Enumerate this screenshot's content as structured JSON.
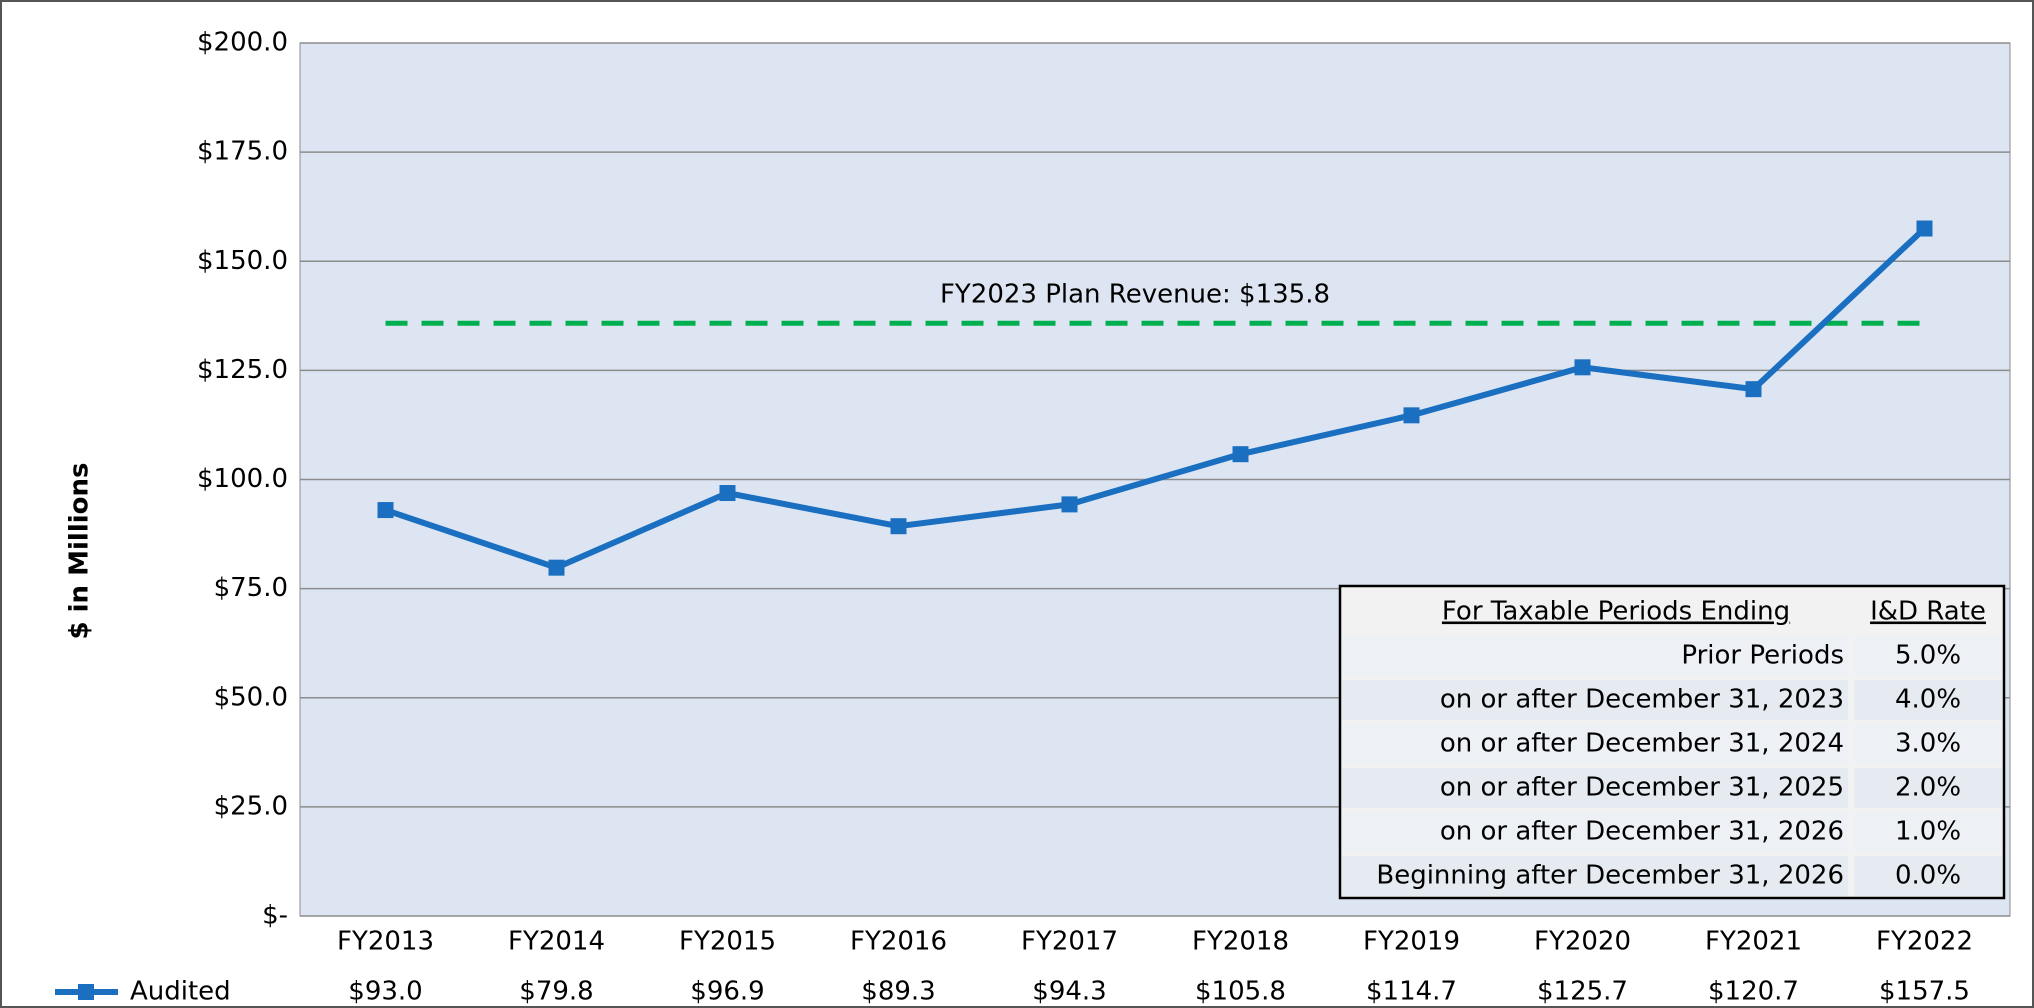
{
  "chart_data": {
    "type": "line",
    "y_axis_label": "$ in Millions",
    "categories": [
      "FY2013",
      "FY2014",
      "FY2015",
      "FY2016",
      "FY2017",
      "FY2018",
      "FY2019",
      "FY2020",
      "FY2021",
      "FY2022"
    ],
    "series": [
      {
        "name": "Audited",
        "color": "#1a6fc0",
        "values": [
          93.0,
          79.8,
          96.9,
          89.3,
          94.3,
          105.8,
          114.7,
          125.7,
          120.7,
          157.5
        ],
        "value_labels": [
          "$93.0",
          "$79.8",
          "$96.9",
          "$89.3",
          "$94.3",
          "$105.8",
          "$114.7",
          "$125.7",
          "$120.7",
          "$157.5"
        ]
      }
    ],
    "plan": {
      "value": 135.8,
      "label": "FY2023 Plan Revenue: $135.8",
      "color": "#00b050"
    },
    "ylim": [
      0,
      200
    ],
    "yticks": [
      {
        "value": 0,
        "label": "$-"
      },
      {
        "value": 25,
        "label": "$25.0"
      },
      {
        "value": 50,
        "label": "$50.0"
      },
      {
        "value": 75,
        "label": "$75.0"
      },
      {
        "value": 100,
        "label": "$100.0"
      },
      {
        "value": 125,
        "label": "$125.0"
      },
      {
        "value": 150,
        "label": "$150.0"
      },
      {
        "value": 175,
        "label": "$175.0"
      },
      {
        "value": 200,
        "label": "$200.0"
      }
    ],
    "grid": true,
    "inset_table": {
      "header": [
        "For Taxable Periods Ending",
        "I&D Rate"
      ],
      "rows": [
        [
          "Prior Periods",
          "5.0%"
        ],
        [
          "on or after December 31, 2023",
          "4.0%"
        ],
        [
          "on or after December 31, 2024",
          "3.0%"
        ],
        [
          "on or after December 31, 2025",
          "2.0%"
        ],
        [
          "on or after December 31, 2026",
          "1.0%"
        ],
        [
          "Beginning after December 31, 2026",
          "0.0%"
        ]
      ]
    }
  }
}
